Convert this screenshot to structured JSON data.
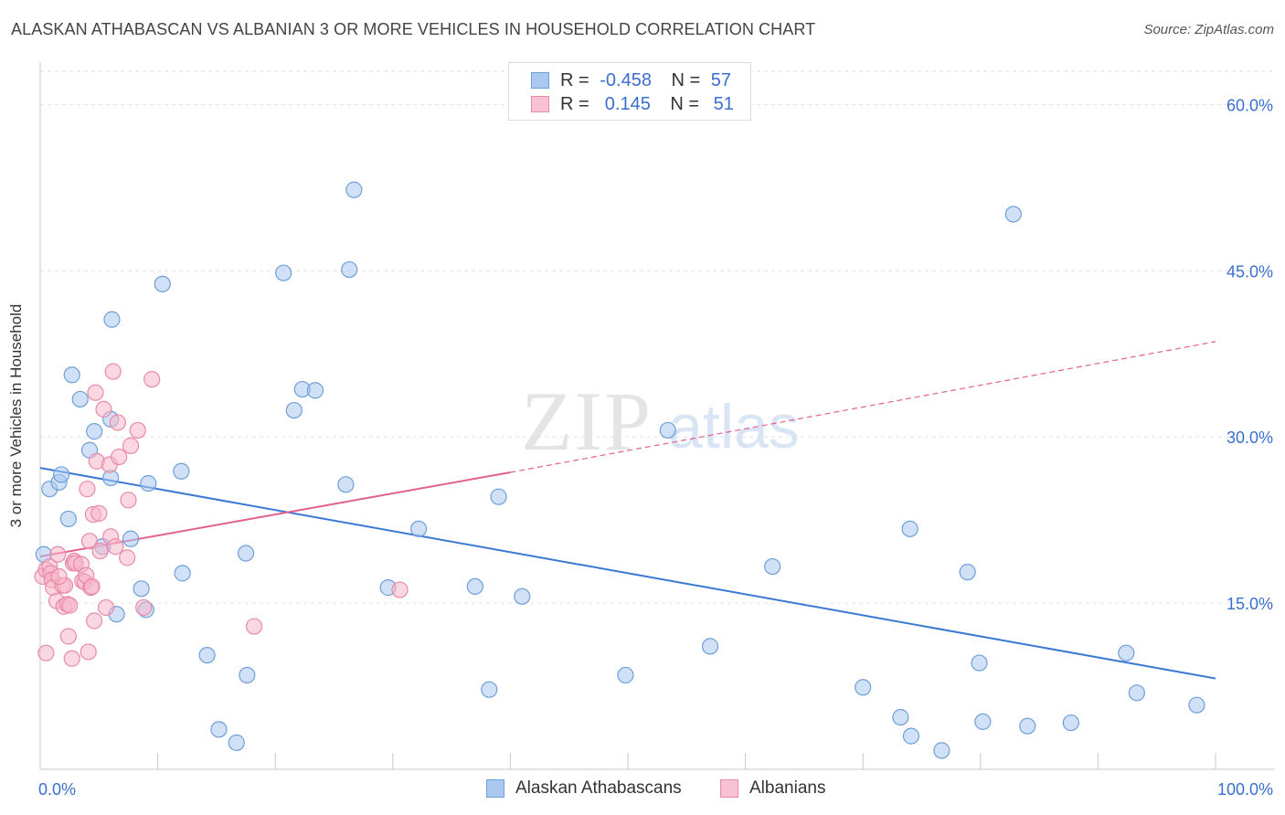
{
  "header": {
    "title": "ALASKAN ATHABASCAN VS ALBANIAN 3 OR MORE VEHICLES IN HOUSEHOLD CORRELATION CHART",
    "source": "Source: ZipAtlas.com"
  },
  "watermark": {
    "zip": "ZIP",
    "atlas": "atlas"
  },
  "legend_top": {
    "rows": [
      {
        "r_label": "R =",
        "r_value": "-0.458",
        "n_label": "N =",
        "n_value": "57"
      },
      {
        "r_label": "R =",
        "r_value": " 0.145",
        "n_label": "N =",
        "n_value": "51"
      }
    ]
  },
  "colors": {
    "blue_fill": "#aac8f0",
    "blue_stroke": "#6f9fd8",
    "blue_line": "#3a78d4",
    "pink_fill": "#f7b6cb",
    "pink_stroke": "#e88aa8",
    "pink_line": "#e2608e",
    "tick_label": "#3a6fd0",
    "grid": "#e2e2e2"
  },
  "chart_data": {
    "type": "scatter",
    "title": "ALASKAN ATHABASCAN VS ALBANIAN 3 OR MORE VEHICLES IN HOUSEHOLD CORRELATION CHART",
    "xlabel": "",
    "ylabel": "3 or more Vehicles in Household",
    "xlim": [
      0,
      100
    ],
    "ylim": [
      0,
      63
    ],
    "x_tick_labels": [
      "0.0%",
      "100.0%"
    ],
    "y_ticks": [
      15,
      30,
      45,
      60
    ],
    "y_tick_labels": [
      "15.0%",
      "30.0%",
      "45.0%",
      "60.0%"
    ],
    "grid": true,
    "legend_position": "bottom",
    "series": [
      {
        "name": "Alaskan Athabascans",
        "color": "#aac8f0",
        "trend": {
          "x": [
            0,
            100
          ],
          "y": [
            27.2,
            8.2
          ],
          "dashed_from": null
        },
        "points": [
          {
            "x": 0.3,
            "y": 19.4
          },
          {
            "x": 0.8,
            "y": 25.3
          },
          {
            "x": 1.6,
            "y": 25.9
          },
          {
            "x": 1.8,
            "y": 26.6
          },
          {
            "x": 2.4,
            "y": 22.6
          },
          {
            "x": 2.7,
            "y": 35.6
          },
          {
            "x": 3.4,
            "y": 33.4
          },
          {
            "x": 4.2,
            "y": 28.8
          },
          {
            "x": 4.6,
            "y": 30.5
          },
          {
            "x": 6.0,
            "y": 31.6
          },
          {
            "x": 6.1,
            "y": 40.6
          },
          {
            "x": 6.0,
            "y": 26.3
          },
          {
            "x": 5.3,
            "y": 20.1
          },
          {
            "x": 6.5,
            "y": 14.0
          },
          {
            "x": 7.7,
            "y": 20.8
          },
          {
            "x": 8.6,
            "y": 16.3
          },
          {
            "x": 9.0,
            "y": 14.4
          },
          {
            "x": 9.2,
            "y": 25.8
          },
          {
            "x": 10.4,
            "y": 43.8
          },
          {
            "x": 12.0,
            "y": 26.9
          },
          {
            "x": 12.1,
            "y": 17.7
          },
          {
            "x": 14.2,
            "y": 10.3
          },
          {
            "x": 15.2,
            "y": 3.6
          },
          {
            "x": 16.7,
            "y": 2.4
          },
          {
            "x": 17.5,
            "y": 19.5
          },
          {
            "x": 17.6,
            "y": 8.5
          },
          {
            "x": 20.7,
            "y": 44.8
          },
          {
            "x": 21.6,
            "y": 32.4
          },
          {
            "x": 22.3,
            "y": 34.3
          },
          {
            "x": 23.4,
            "y": 34.2
          },
          {
            "x": 26.0,
            "y": 25.7
          },
          {
            "x": 26.3,
            "y": 45.1
          },
          {
            "x": 26.7,
            "y": 52.3
          },
          {
            "x": 29.6,
            "y": 16.4
          },
          {
            "x": 32.2,
            "y": 21.7
          },
          {
            "x": 37.0,
            "y": 16.5
          },
          {
            "x": 38.2,
            "y": 7.2
          },
          {
            "x": 39.0,
            "y": 24.6
          },
          {
            "x": 41.0,
            "y": 15.6
          },
          {
            "x": 49.8,
            "y": 8.5
          },
          {
            "x": 53.4,
            "y": 30.6
          },
          {
            "x": 57.0,
            "y": 11.1
          },
          {
            "x": 62.3,
            "y": 18.3
          },
          {
            "x": 70.0,
            "y": 7.4
          },
          {
            "x": 73.2,
            "y": 4.7
          },
          {
            "x": 74.0,
            "y": 21.7
          },
          {
            "x": 74.1,
            "y": 3.0
          },
          {
            "x": 76.7,
            "y": 1.7
          },
          {
            "x": 78.9,
            "y": 17.8
          },
          {
            "x": 79.9,
            "y": 9.6
          },
          {
            "x": 80.2,
            "y": 4.3
          },
          {
            "x": 82.8,
            "y": 50.1
          },
          {
            "x": 84.0,
            "y": 3.9
          },
          {
            "x": 87.7,
            "y": 4.2
          },
          {
            "x": 92.4,
            "y": 10.5
          },
          {
            "x": 93.3,
            "y": 6.9
          },
          {
            "x": 98.4,
            "y": 5.8
          }
        ]
      },
      {
        "name": "Albanians",
        "color": "#f7b6cb",
        "trend": {
          "x": [
            0,
            40,
            100
          ],
          "y": [
            19.2,
            26.8,
            38.6
          ],
          "dashed_from": 40
        },
        "points": [
          {
            "x": 0.2,
            "y": 17.4
          },
          {
            "x": 0.5,
            "y": 10.5
          },
          {
            "x": 0.5,
            "y": 18.0
          },
          {
            "x": 0.8,
            "y": 18.3
          },
          {
            "x": 0.9,
            "y": 17.7
          },
          {
            "x": 1.0,
            "y": 17.1
          },
          {
            "x": 1.1,
            "y": 16.4
          },
          {
            "x": 1.4,
            "y": 15.2
          },
          {
            "x": 1.5,
            "y": 19.4
          },
          {
            "x": 1.9,
            "y": 16.6
          },
          {
            "x": 2.0,
            "y": 14.7
          },
          {
            "x": 2.1,
            "y": 16.6
          },
          {
            "x": 2.3,
            "y": 14.9
          },
          {
            "x": 2.4,
            "y": 12.0
          },
          {
            "x": 2.7,
            "y": 10.0
          },
          {
            "x": 2.8,
            "y": 18.6
          },
          {
            "x": 2.9,
            "y": 18.8
          },
          {
            "x": 3.0,
            "y": 18.6
          },
          {
            "x": 3.5,
            "y": 18.5
          },
          {
            "x": 3.6,
            "y": 17.0
          },
          {
            "x": 3.8,
            "y": 16.9
          },
          {
            "x": 3.9,
            "y": 17.5
          },
          {
            "x": 4.1,
            "y": 10.6
          },
          {
            "x": 4.0,
            "y": 25.3
          },
          {
            "x": 4.2,
            "y": 20.6
          },
          {
            "x": 4.3,
            "y": 16.4
          },
          {
            "x": 4.4,
            "y": 16.5
          },
          {
            "x": 4.5,
            "y": 23.0
          },
          {
            "x": 4.6,
            "y": 13.4
          },
          {
            "x": 4.7,
            "y": 34.0
          },
          {
            "x": 4.8,
            "y": 27.8
          },
          {
            "x": 5.0,
            "y": 23.1
          },
          {
            "x": 5.1,
            "y": 19.7
          },
          {
            "x": 5.4,
            "y": 32.5
          },
          {
            "x": 5.6,
            "y": 14.6
          },
          {
            "x": 5.9,
            "y": 27.5
          },
          {
            "x": 6.0,
            "y": 21.0
          },
          {
            "x": 6.2,
            "y": 35.9
          },
          {
            "x": 6.4,
            "y": 20.1
          },
          {
            "x": 6.6,
            "y": 31.3
          },
          {
            "x": 6.7,
            "y": 28.2
          },
          {
            "x": 7.4,
            "y": 19.1
          },
          {
            "x": 7.5,
            "y": 24.3
          },
          {
            "x": 7.7,
            "y": 29.2
          },
          {
            "x": 8.3,
            "y": 30.6
          },
          {
            "x": 8.8,
            "y": 14.6
          },
          {
            "x": 9.5,
            "y": 35.2
          },
          {
            "x": 18.2,
            "y": 12.9
          },
          {
            "x": 30.6,
            "y": 16.2
          },
          {
            "x": 1.6,
            "y": 17.4
          },
          {
            "x": 2.5,
            "y": 14.8
          }
        ]
      }
    ]
  },
  "legend_bottom": {
    "items": [
      {
        "label": "Alaskan Athabascans"
      },
      {
        "label": "Albanians"
      }
    ]
  }
}
